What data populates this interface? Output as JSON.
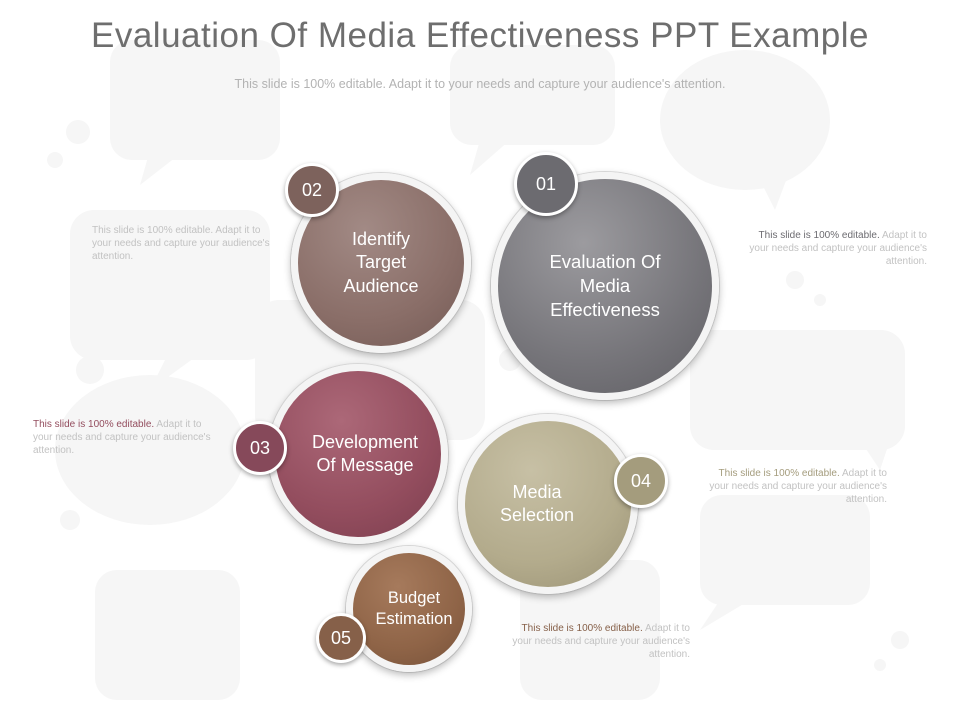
{
  "slide": {
    "title": "Evaluation  Of Media Effectiveness PPT Example",
    "subtitle": "This slide is 100% editable. Adapt it to your needs and capture your audience's attention."
  },
  "colors": {
    "gray": "#76757a",
    "brown": "#8a6e68",
    "maroon": "#934d5e",
    "khaki": "#b3ab8c",
    "copper": "#8f6447",
    "badge_gray": "#6c6b70",
    "badge_brown": "#7d625c",
    "badge_maroon": "#86495a",
    "badge_khaki": "#a49c7d",
    "badge_copper": "#866049"
  },
  "steps": [
    {
      "number": "01",
      "label": "Evaluation Of\nMedia\nEffectiveness"
    },
    {
      "number": "02",
      "label": "Identify\nTarget\nAudience"
    },
    {
      "number": "03",
      "label": "Development\nOf Message"
    },
    {
      "number": "04",
      "label": "Media\nSelection"
    },
    {
      "number": "05",
      "label": "Budget\nEstimation"
    }
  ],
  "notes": [
    {
      "highlight": "This slide is 100% editable.",
      "text": " Adapt it to your needs and capture your audience's attention.",
      "color": "#c2c2c2"
    },
    {
      "highlight": "This slide is 100% editable.",
      "text": " Adapt it to your needs and capture your audience's attention.",
      "color": "#6c6b70"
    },
    {
      "highlight": "This slide is 100% editable.",
      "text": " Adapt it to your needs and capture your audience's attention.",
      "color": "#934d5e"
    },
    {
      "highlight": "This slide is 100% editable.",
      "text": " Adapt it to your needs and capture your audience's attention.",
      "color": "#a49c7d"
    },
    {
      "highlight": "This slide is 100% editable.",
      "text": " Adapt it to your needs and capture your audience's attention.",
      "color": "#866049"
    }
  ]
}
